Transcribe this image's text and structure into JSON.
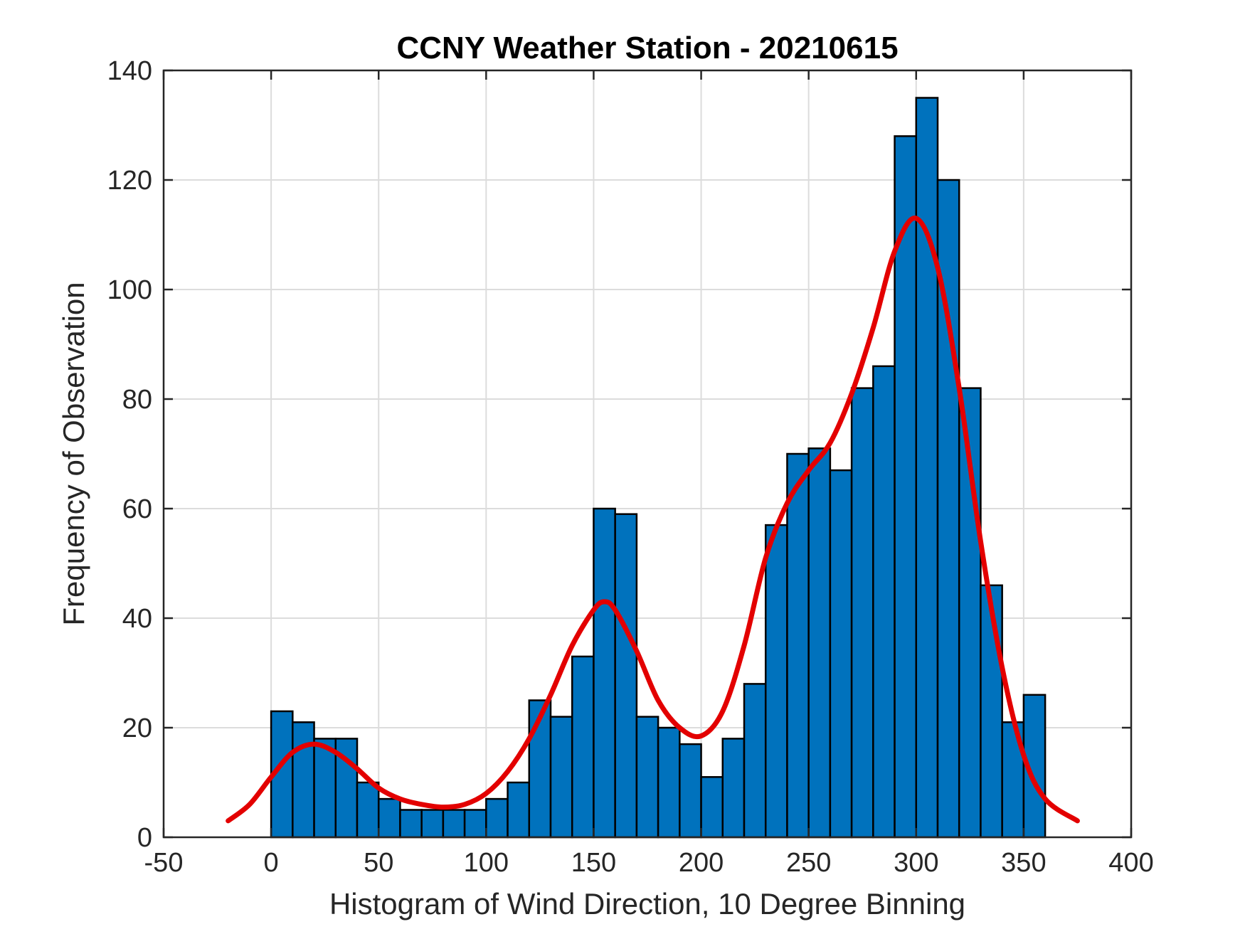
{
  "chart_data": {
    "type": "bar",
    "title": "CCNY Weather Station - 20210615",
    "xlabel": "Histogram of Wind Direction, 10 Degree Binning",
    "ylabel": "Frequency of Observation",
    "xlim": [
      -50,
      400
    ],
    "ylim": [
      0,
      140
    ],
    "xticks": [
      -50,
      0,
      50,
      100,
      150,
      200,
      250,
      300,
      350,
      400
    ],
    "yticks": [
      0,
      20,
      40,
      60,
      80,
      100,
      120,
      140
    ],
    "grid": true,
    "bin_width": 10,
    "bins": [
      {
        "start": 0,
        "count": 23
      },
      {
        "start": 10,
        "count": 21
      },
      {
        "start": 20,
        "count": 18
      },
      {
        "start": 30,
        "count": 18
      },
      {
        "start": 40,
        "count": 10
      },
      {
        "start": 50,
        "count": 7
      },
      {
        "start": 60,
        "count": 5
      },
      {
        "start": 70,
        "count": 5
      },
      {
        "start": 80,
        "count": 5
      },
      {
        "start": 90,
        "count": 5
      },
      {
        "start": 100,
        "count": 7
      },
      {
        "start": 110,
        "count": 10
      },
      {
        "start": 120,
        "count": 25
      },
      {
        "start": 130,
        "count": 22
      },
      {
        "start": 140,
        "count": 33
      },
      {
        "start": 150,
        "count": 60
      },
      {
        "start": 160,
        "count": 59
      },
      {
        "start": 170,
        "count": 22
      },
      {
        "start": 180,
        "count": 20
      },
      {
        "start": 190,
        "count": 17
      },
      {
        "start": 200,
        "count": 11
      },
      {
        "start": 210,
        "count": 18
      },
      {
        "start": 220,
        "count": 28
      },
      {
        "start": 230,
        "count": 57
      },
      {
        "start": 240,
        "count": 70
      },
      {
        "start": 250,
        "count": 71
      },
      {
        "start": 260,
        "count": 67
      },
      {
        "start": 270,
        "count": 82
      },
      {
        "start": 280,
        "count": 86
      },
      {
        "start": 290,
        "count": 128
      },
      {
        "start": 300,
        "count": 135
      },
      {
        "start": 310,
        "count": 120
      },
      {
        "start": 320,
        "count": 82
      },
      {
        "start": 330,
        "count": 46
      },
      {
        "start": 340,
        "count": 21
      },
      {
        "start": 350,
        "count": 26
      }
    ],
    "fit_curve": {
      "x": [
        -20,
        -10,
        0,
        10,
        20,
        30,
        40,
        50,
        60,
        70,
        80,
        90,
        100,
        110,
        120,
        130,
        140,
        150,
        155,
        160,
        170,
        180,
        190,
        200,
        210,
        220,
        230,
        240,
        250,
        260,
        270,
        280,
        290,
        300,
        310,
        320,
        330,
        340,
        350,
        360,
        375
      ],
      "y": [
        3,
        6,
        11,
        15.5,
        17,
        15.5,
        12.5,
        9,
        7,
        6,
        5.5,
        6,
        8,
        12,
        18,
        26,
        35,
        41.5,
        43,
        41.5,
        34,
        25,
        20,
        18.5,
        23,
        35,
        51,
        61,
        67,
        72,
        81,
        93,
        107,
        113,
        104,
        82,
        54,
        31,
        15,
        7,
        3
      ],
      "color": "#e30000"
    },
    "bar_color": "#0072bd",
    "edge_color": "#000000"
  }
}
